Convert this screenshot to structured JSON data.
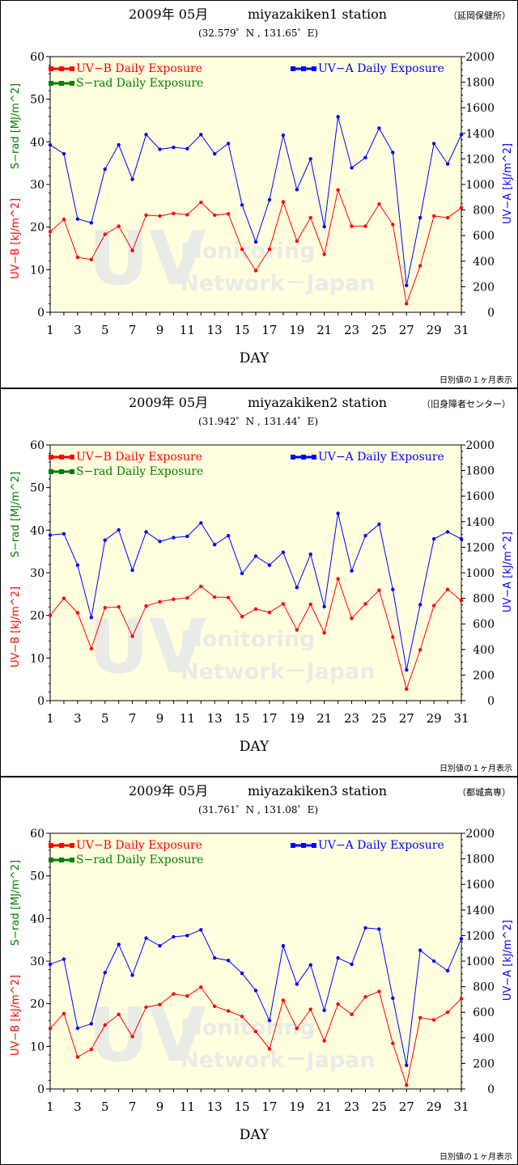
{
  "footer_note": "日別値の１ヶ月表示",
  "chart_data": [
    {
      "type": "line",
      "title": "2009年 05月",
      "station": "miyazakiken1 station",
      "location_name": "（延岡保健所）",
      "coordinates": "(32.579゜N , 131.65゜E)",
      "xlabel": "DAY",
      "ylabel_left_uvb": "UV−B [kJ/m^2]",
      "ylabel_left_srad": "S−rad [MJ/m^2]",
      "ylabel_right": "UV−A [kJ/m^2]",
      "ylim_left": [
        0,
        60
      ],
      "ylim_right": [
        0,
        2000
      ],
      "xlim": [
        1,
        31
      ],
      "left_ticks": [
        "0",
        "10",
        "20",
        "30",
        "40",
        "50",
        "60"
      ],
      "right_ticks": [
        "0",
        "200",
        "400",
        "600",
        "800",
        "1000",
        "1200",
        "1400",
        "1600",
        "1800",
        "2000"
      ],
      "x_ticks": [
        "1",
        "3",
        "5",
        "7",
        "9",
        "11",
        "13",
        "15",
        "17",
        "19",
        "21",
        "23",
        "25",
        "27",
        "29",
        "31"
      ],
      "legend": {
        "uvb": "UV−B Daily Exposure",
        "srad": "S−rad Daily Exposure",
        "uva": "UV−A Daily Exposure"
      },
      "watermark": [
        "UV",
        "Monitoring",
        "Network－Japan"
      ],
      "colors": {
        "uvb": "#ff0000",
        "uva": "#0000ff",
        "srad": "#008000",
        "plot_bg": "#ffffe0"
      },
      "series": [
        {
          "name": "UV−B Daily Exposure",
          "axis": "left",
          "color": "#ff0000",
          "x": [
            1,
            2,
            3,
            4,
            5,
            6,
            7,
            8,
            9,
            10,
            11,
            12,
            13,
            14,
            15,
            16,
            17,
            18,
            19,
            20,
            21,
            22,
            23,
            24,
            25,
            26,
            27,
            28,
            29,
            30,
            31
          ],
          "values": [
            18.9,
            21.8,
            12.9,
            12.4,
            18.3,
            20.2,
            14.5,
            22.8,
            22.6,
            23.2,
            22.9,
            25.8,
            22.8,
            23.1,
            14.8,
            9.8,
            14.8,
            25.9,
            16.7,
            22.2,
            13.6,
            28.7,
            20.2,
            20.2,
            25.4,
            20.6,
            2.0,
            10.9,
            22.6,
            22.2,
            24.5
          ]
        },
        {
          "name": "UV−A Daily Exposure",
          "axis": "right",
          "color": "#0000ff",
          "x": [
            1,
            2,
            3,
            4,
            5,
            6,
            7,
            8,
            9,
            10,
            11,
            12,
            13,
            14,
            15,
            16,
            17,
            18,
            19,
            20,
            21,
            22,
            23,
            24,
            25,
            26,
            27,
            28,
            29,
            30,
            31
          ],
          "values": [
            1310,
            1240,
            730,
            700,
            1120,
            1310,
            1040,
            1390,
            1275,
            1290,
            1280,
            1390,
            1240,
            1320,
            840,
            550,
            880,
            1385,
            960,
            1200,
            670,
            1530,
            1130,
            1210,
            1440,
            1250,
            210,
            740,
            1320,
            1160,
            1390
          ]
        },
        {
          "name": "S−rad Daily Exposure",
          "axis": "left",
          "color": "#008000",
          "x": [],
          "values": []
        }
      ]
    },
    {
      "type": "line",
      "title": "2009年 05月",
      "station": "miyazakiken2 station",
      "location_name": "（旧身障者センター）",
      "coordinates": "(31.942゜N , 131.44゜E)",
      "xlabel": "DAY",
      "ylabel_left_uvb": "UV−B [kJ/m^2]",
      "ylabel_left_srad": "S−rad [MJ/m^2]",
      "ylabel_right": "UV−A [kJ/m^2]",
      "ylim_left": [
        0,
        60
      ],
      "ylim_right": [
        0,
        2000
      ],
      "xlim": [
        1,
        31
      ],
      "left_ticks": [
        "0",
        "10",
        "20",
        "30",
        "40",
        "50",
        "60"
      ],
      "right_ticks": [
        "0",
        "200",
        "400",
        "600",
        "800",
        "1000",
        "1200",
        "1400",
        "1600",
        "1800",
        "2000"
      ],
      "x_ticks": [
        "1",
        "3",
        "5",
        "7",
        "9",
        "11",
        "13",
        "15",
        "17",
        "19",
        "21",
        "23",
        "25",
        "27",
        "29",
        "31"
      ],
      "legend": {
        "uvb": "UV−B Daily Exposure",
        "srad": "S−rad Daily Exposure",
        "uva": "UV−A Daily Exposure"
      },
      "watermark": [
        "UV",
        "Monitoring",
        "Network－Japan"
      ],
      "colors": {
        "uvb": "#ff0000",
        "uva": "#0000ff",
        "srad": "#008000",
        "plot_bg": "#ffffe0"
      },
      "series": [
        {
          "name": "UV−B Daily Exposure",
          "axis": "left",
          "color": "#ff0000",
          "x": [
            1,
            2,
            3,
            4,
            5,
            6,
            7,
            8,
            9,
            10,
            11,
            12,
            13,
            14,
            15,
            16,
            17,
            18,
            19,
            20,
            21,
            22,
            23,
            24,
            25,
            26,
            27,
            28,
            29,
            30,
            31
          ],
          "values": [
            20.0,
            24.0,
            20.6,
            12.2,
            21.8,
            22.0,
            15.1,
            22.2,
            23.2,
            23.8,
            24.1,
            26.8,
            24.3,
            24.2,
            19.7,
            21.5,
            20.7,
            22.7,
            16.6,
            22.6,
            15.9,
            28.6,
            19.3,
            22.7,
            25.9,
            14.9,
            2.7,
            11.9,
            22.3,
            26.1,
            23.5
          ]
        },
        {
          "name": "UV−A Daily Exposure",
          "axis": "right",
          "color": "#0000ff",
          "x": [
            1,
            2,
            3,
            4,
            5,
            6,
            7,
            8,
            9,
            10,
            11,
            12,
            13,
            14,
            15,
            16,
            17,
            18,
            19,
            20,
            21,
            22,
            23,
            24,
            25,
            26,
            27,
            28,
            29,
            30,
            31
          ],
          "values": [
            1295,
            1305,
            1060,
            650,
            1255,
            1335,
            1020,
            1320,
            1245,
            1275,
            1285,
            1390,
            1220,
            1290,
            995,
            1130,
            1060,
            1160,
            885,
            1145,
            735,
            1465,
            1015,
            1290,
            1380,
            870,
            240,
            750,
            1265,
            1320,
            1265
          ]
        },
        {
          "name": "S−rad Daily Exposure",
          "axis": "left",
          "color": "#008000",
          "x": [],
          "values": []
        }
      ]
    },
    {
      "type": "line",
      "title": "2009年 05月",
      "station": "miyazakiken3 station",
      "location_name": "（都城高専）",
      "coordinates": "(31.761゜N , 131.08゜E)",
      "xlabel": "DAY",
      "ylabel_left_uvb": "UV−B [kJ/m^2]",
      "ylabel_left_srad": "S−rad [MJ/m^2]",
      "ylabel_right": "UV−A [kJ/m^2]",
      "ylim_left": [
        0,
        60
      ],
      "ylim_right": [
        0,
        2000
      ],
      "xlim": [
        1,
        31
      ],
      "left_ticks": [
        "0",
        "10",
        "20",
        "30",
        "40",
        "50",
        "60"
      ],
      "right_ticks": [
        "0",
        "200",
        "400",
        "600",
        "800",
        "1000",
        "1200",
        "1400",
        "1600",
        "1800",
        "2000"
      ],
      "x_ticks": [
        "1",
        "3",
        "5",
        "7",
        "9",
        "11",
        "13",
        "15",
        "17",
        "19",
        "21",
        "23",
        "25",
        "27",
        "29",
        "31"
      ],
      "legend": {
        "uvb": "UV−B Daily Exposure",
        "srad": "S−rad Daily Exposure",
        "uva": "UV−A Daily Exposure"
      },
      "watermark": [
        "UV",
        "Monitoring",
        "Network－Japan"
      ],
      "colors": {
        "uvb": "#ff0000",
        "uva": "#0000ff",
        "srad": "#008000",
        "plot_bg": "#ffffe0"
      },
      "series": [
        {
          "name": "UV−B Daily Exposure",
          "axis": "left",
          "color": "#ff0000",
          "x": [
            1,
            2,
            3,
            4,
            5,
            6,
            7,
            8,
            9,
            10,
            11,
            12,
            13,
            14,
            15,
            16,
            17,
            18,
            19,
            20,
            21,
            22,
            23,
            24,
            25,
            26,
            27,
            28,
            29,
            30,
            31
          ],
          "values": [
            14.2,
            17.7,
            7.5,
            9.3,
            15.0,
            17.5,
            12.3,
            19.2,
            19.8,
            22.3,
            21.8,
            23.9,
            19.4,
            18.3,
            17.0,
            13.5,
            9.4,
            20.8,
            14.2,
            18.7,
            11.3,
            19.9,
            17.5,
            21.6,
            22.9,
            10.7,
            0.9,
            16.7,
            16.2,
            18.0,
            21.2
          ]
        },
        {
          "name": "UV−A Daily Exposure",
          "axis": "right",
          "color": "#0000ff",
          "x": [
            1,
            2,
            3,
            4,
            5,
            6,
            7,
            8,
            9,
            10,
            11,
            12,
            13,
            14,
            15,
            16,
            17,
            18,
            19,
            20,
            21,
            22,
            23,
            24,
            25,
            26,
            27,
            28,
            29,
            30,
            31
          ],
          "values": [
            975,
            1015,
            475,
            510,
            910,
            1130,
            890,
            1180,
            1120,
            1190,
            1200,
            1245,
            1025,
            1005,
            905,
            770,
            535,
            1120,
            820,
            970,
            615,
            1025,
            975,
            1260,
            1250,
            710,
            185,
            1085,
            1000,
            925,
            1175
          ]
        },
        {
          "name": "S−rad Daily Exposure",
          "axis": "left",
          "color": "#008000",
          "x": [],
          "values": []
        }
      ]
    }
  ]
}
